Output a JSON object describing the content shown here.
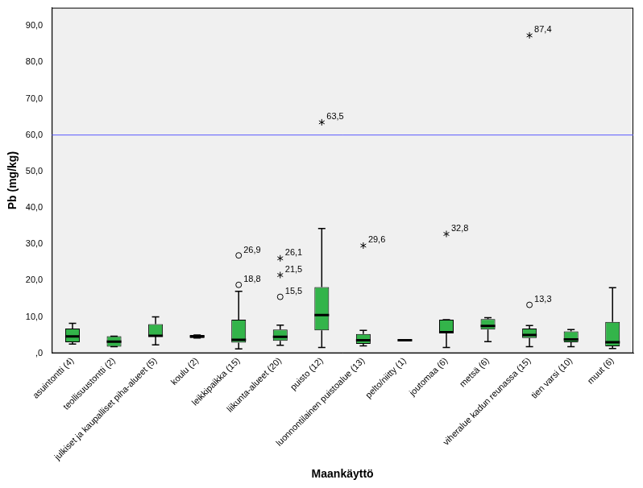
{
  "chart_data": {
    "type": "boxplot",
    "x_label": "Maankäyttö",
    "y_label": "Pb (mg/kg)",
    "categories": [
      "asuintontti (4)",
      "teollisuustontti (2)",
      "julkiset ja kaupalliset piha-alueet (5)",
      "koulu (2)",
      "leikkipaikka (15)",
      "liikunta-alueet (20)",
      "puisto (12)",
      "luonnontilainen puistoalue (13)",
      "pelto/niitty (1)",
      "joutomaa (6)",
      "metsä (6)",
      "viheralue kadun reunassa (15)",
      "tien varsi (10)",
      "muut (6)"
    ],
    "color": "#33b44a",
    "boxes": [
      {
        "min": 2.5,
        "q1": 3.0,
        "median": 4.6,
        "q3": 6.8,
        "max": 8.2,
        "outliers": []
      },
      {
        "min": 1.8,
        "q1": 1.8,
        "median": 3.2,
        "q3": 4.7,
        "max": 4.7,
        "outliers": []
      },
      {
        "min": 2.3,
        "q1": 4.6,
        "median": 4.8,
        "q3": 8.0,
        "max": 10.0,
        "outliers": []
      },
      {
        "min": 4.2,
        "q1": 4.2,
        "median": 4.6,
        "q3": 5.0,
        "max": 5.0,
        "outliers": []
      },
      {
        "min": 1.2,
        "q1": 2.9,
        "median": 3.7,
        "q3": 9.2,
        "max": 17.0,
        "outliers": [
          {
            "value": 18.8,
            "label": "18,8",
            "marker": "circle"
          },
          {
            "value": 26.9,
            "label": "26,9",
            "marker": "circle"
          }
        ]
      },
      {
        "min": 2.2,
        "q1": 3.4,
        "median": 4.5,
        "q3": 6.5,
        "max": 7.7,
        "outliers": [
          {
            "value": 15.5,
            "label": "15,5",
            "marker": "circle"
          },
          {
            "value": 21.5,
            "label": "21,5",
            "marker": "star"
          },
          {
            "value": 26.1,
            "label": "26,1",
            "marker": "star"
          }
        ]
      },
      {
        "min": 1.6,
        "q1": 6.3,
        "median": 10.5,
        "q3": 18.2,
        "max": 34.3,
        "outliers": [
          {
            "value": 63.5,
            "label": "63,5",
            "marker": "star"
          }
        ]
      },
      {
        "min": 2.0,
        "q1": 2.6,
        "median": 3.6,
        "q3": 5.3,
        "max": 6.3,
        "outliers": [
          {
            "value": 29.6,
            "label": "29,6",
            "marker": "star"
          }
        ]
      },
      {
        "min": 3.6,
        "q1": 3.6,
        "median": 3.6,
        "q3": 3.6,
        "max": 3.6,
        "outliers": []
      },
      {
        "min": 1.6,
        "q1": 5.5,
        "median": 5.8,
        "q3": 9.2,
        "max": 9.2,
        "outliers": [
          {
            "value": 32.8,
            "label": "32,8",
            "marker": "star"
          }
        ]
      },
      {
        "min": 3.2,
        "q1": 6.5,
        "median": 7.5,
        "q3": 9.4,
        "max": 9.8,
        "outliers": []
      },
      {
        "min": 1.8,
        "q1": 4.2,
        "median": 5.0,
        "q3": 6.8,
        "max": 7.6,
        "outliers": [
          {
            "value": 13.3,
            "label": "13,3",
            "marker": "circle"
          },
          {
            "value": 87.4,
            "label": "87,4",
            "marker": "star"
          }
        ]
      },
      {
        "min": 1.8,
        "q1": 3.0,
        "median": 3.8,
        "q3": 6.0,
        "max": 6.5,
        "outliers": []
      },
      {
        "min": 1.3,
        "q1": 1.9,
        "median": 3.0,
        "q3": 8.6,
        "max": 18.0,
        "outliers": []
      }
    ],
    "reference_line": {
      "value": 60,
      "color": "#5a5aff"
    },
    "ylim": [
      0,
      95
    ],
    "yticks": [
      {
        "value": 0,
        "label": ",0"
      },
      {
        "value": 10,
        "label": "10,0"
      },
      {
        "value": 20,
        "label": "20,0"
      },
      {
        "value": 30,
        "label": "30,0"
      },
      {
        "value": 40,
        "label": "40,0"
      },
      {
        "value": 50,
        "label": "50,0"
      },
      {
        "value": 60,
        "label": "60,0"
      },
      {
        "value": 70,
        "label": "70,0"
      },
      {
        "value": 80,
        "label": "80,0"
      },
      {
        "value": 90,
        "label": "90,0"
      }
    ],
    "grid": false
  }
}
